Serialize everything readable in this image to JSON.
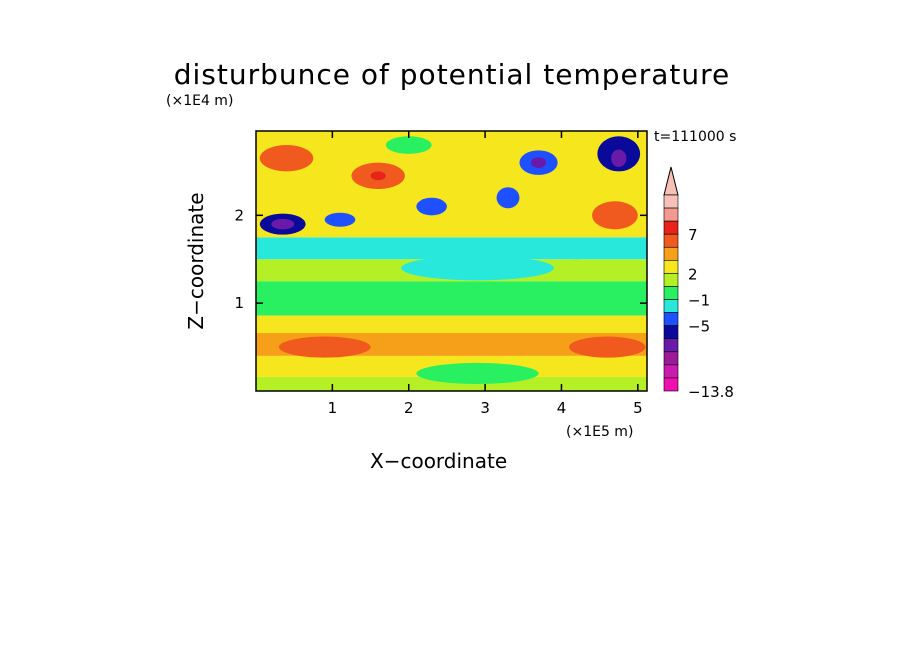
{
  "chart_data": {
    "type": "heatmap",
    "title": "disturbunce of potential temperature",
    "xlabel": "X−coordinate",
    "ylabel": "Z−coordinate",
    "x_unit": "(×1E5 m)",
    "y_unit": "(×1E4 m)",
    "time_label": "t=111000 s",
    "xlim": [
      0,
      5.12
    ],
    "ylim": [
      0,
      2.96
    ],
    "x_ticks": [
      "1",
      "2",
      "3",
      "4",
      "5"
    ],
    "y_ticks": [
      "1",
      "2"
    ],
    "colorbar": {
      "labels": [
        "7",
        "2",
        "−1",
        "−5",
        "−13.8"
      ],
      "colors": [
        "#f7c0b8",
        "#f29a90",
        "#e8231a",
        "#f05a1e",
        "#f5a018",
        "#f5e61e",
        "#b5f026",
        "#28f060",
        "#28e8dc",
        "#1e50ff",
        "#0a0a9a",
        "#6a1aa8",
        "#9a1a9a",
        "#cc1ab0",
        "#ee10b0"
      ],
      "min": -13.8
    },
    "bands": [
      {
        "z": [
          0.0,
          0.16
        ],
        "color": "#b5f026"
      },
      {
        "z": [
          0.16,
          0.4
        ],
        "color": "#f5e61e"
      },
      {
        "z": [
          0.4,
          0.66
        ],
        "color": "#f5a018"
      },
      {
        "z": [
          0.66,
          0.86
        ],
        "color": "#f5e61e"
      },
      {
        "z": [
          0.86,
          1.25
        ],
        "color": "#28f060"
      },
      {
        "z": [
          1.25,
          1.5
        ],
        "color": "#b5f026"
      },
      {
        "z": [
          1.5,
          1.75
        ],
        "color": "#28e8dc"
      },
      {
        "z": [
          1.75,
          2.96
        ],
        "color": "#f5e61e"
      }
    ],
    "blobs": [
      {
        "x": 0.35,
        "z": 1.9,
        "rx": 0.3,
        "rz": 0.12,
        "color": "#0a0a9a"
      },
      {
        "x": 0.35,
        "z": 1.9,
        "rx": 0.15,
        "rz": 0.06,
        "color": "#6a1aa8"
      },
      {
        "x": 0.4,
        "z": 2.65,
        "rx": 0.35,
        "rz": 0.15,
        "color": "#f05a1e"
      },
      {
        "x": 1.6,
        "z": 2.45,
        "rx": 0.35,
        "rz": 0.15,
        "color": "#f05a1e"
      },
      {
        "x": 1.6,
        "z": 2.45,
        "rx": 0.1,
        "rz": 0.05,
        "color": "#e8231a"
      },
      {
        "x": 4.75,
        "z": 2.7,
        "rx": 0.28,
        "rz": 0.2,
        "color": "#0a0a9a"
      },
      {
        "x": 4.75,
        "z": 2.65,
        "rx": 0.1,
        "rz": 0.1,
        "color": "#6a1aa8"
      },
      {
        "x": 4.7,
        "z": 2.0,
        "rx": 0.3,
        "rz": 0.16,
        "color": "#f05a1e"
      },
      {
        "x": 3.7,
        "z": 2.6,
        "rx": 0.25,
        "rz": 0.14,
        "color": "#1e50ff"
      },
      {
        "x": 3.7,
        "z": 2.6,
        "rx": 0.1,
        "rz": 0.06,
        "color": "#6a1aa8"
      },
      {
        "x": 0.9,
        "z": 0.5,
        "rx": 0.6,
        "rz": 0.12,
        "color": "#f05a1e"
      },
      {
        "x": 4.6,
        "z": 0.5,
        "rx": 0.5,
        "rz": 0.12,
        "color": "#f05a1e"
      },
      {
        "x": 2.9,
        "z": 0.2,
        "rx": 0.8,
        "rz": 0.12,
        "color": "#28f060"
      },
      {
        "x": 2.9,
        "z": 1.4,
        "rx": 1.0,
        "rz": 0.14,
        "color": "#28e8dc"
      },
      {
        "x": 2.3,
        "z": 2.1,
        "rx": 0.2,
        "rz": 0.1,
        "color": "#1e50ff"
      },
      {
        "x": 3.3,
        "z": 2.2,
        "rx": 0.15,
        "rz": 0.12,
        "color": "#1e50ff"
      },
      {
        "x": 1.1,
        "z": 1.95,
        "rx": 0.2,
        "rz": 0.08,
        "color": "#1e50ff"
      },
      {
        "x": 2.0,
        "z": 2.8,
        "rx": 0.3,
        "rz": 0.1,
        "color": "#28f060"
      },
      {
        "x": 4.2,
        "z": 1.6,
        "rx": 0.25,
        "rz": 0.1,
        "color": "#28e8dc"
      }
    ]
  }
}
